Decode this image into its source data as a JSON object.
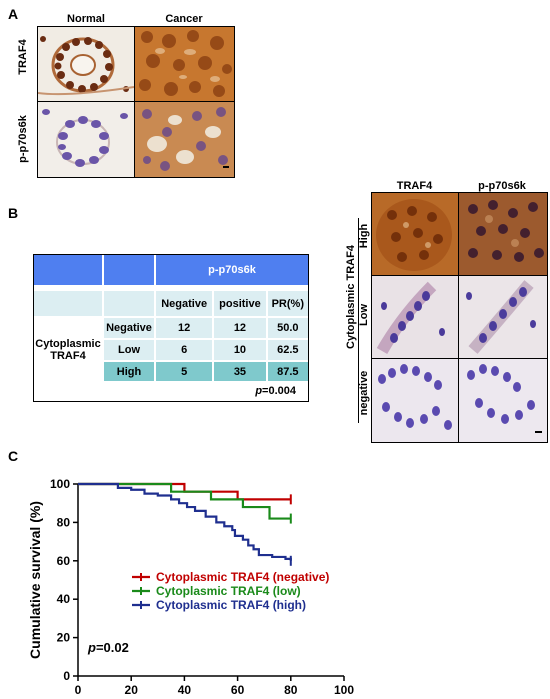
{
  "panelA": {
    "letter": "A",
    "col_labels": [
      "Normal",
      "Cancer"
    ],
    "row_labels": [
      "TRAF4",
      "p-p70s6k"
    ]
  },
  "panelB": {
    "letter": "B",
    "table": {
      "header": "p-p70s6k",
      "columns": [
        "Negative",
        "positive",
        "PR(%)"
      ],
      "row_group": "Cytoplasmic\nTRAF4",
      "rows": [
        {
          "label": "Negative",
          "values": [
            "12",
            "12",
            "50.0"
          ]
        },
        {
          "label": "Low",
          "values": [
            "6",
            "10",
            "62.5"
          ]
        },
        {
          "label": "High",
          "values": [
            "5",
            "35",
            "87.5"
          ]
        }
      ],
      "p_prefix": "p",
      "p_value": "=0.004"
    },
    "micro": {
      "col_labels": [
        "TRAF4",
        "p-p70s6k"
      ],
      "row_labels": [
        "High",
        "Low",
        "negative"
      ],
      "group_label": "Cytoplasmic TRAF4"
    }
  },
  "panelC": {
    "letter": "C",
    "chart_data": {
      "type": "line",
      "xlabel": "months",
      "ylabel": "Cumulative survival (%)",
      "xlim": [
        0,
        100
      ],
      "ylim": [
        0,
        100
      ],
      "xticks": [
        "0",
        "20",
        "40",
        "60",
        "80",
        "100"
      ],
      "yticks": [
        "0",
        "20",
        "40",
        "60",
        "80",
        "100"
      ],
      "legend_position": "center",
      "series": [
        {
          "name": "Cytoplasmic TRAF4 (negative)",
          "color": "#c00000",
          "x": [
            0,
            29,
            40,
            60,
            80
          ],
          "y": [
            100,
            100,
            96,
            92,
            92
          ]
        },
        {
          "name": "Cytoplasmic TRAF4 (low)",
          "color": "#1a8a1a",
          "x": [
            0,
            28,
            35,
            50,
            62,
            72,
            80
          ],
          "y": [
            100,
            100,
            96,
            92,
            88,
            82,
            82
          ]
        },
        {
          "name": "Cytoplasmic TRAF4 (high)",
          "color": "#1f2f8f",
          "x": [
            0,
            15,
            20,
            25,
            30,
            35,
            38,
            41,
            44,
            48,
            52,
            55,
            58,
            59,
            62,
            64,
            66,
            68,
            73,
            78,
            80
          ],
          "y": [
            100,
            98,
            97,
            95,
            94,
            92,
            90,
            88,
            86,
            83,
            80,
            78,
            76,
            73,
            71,
            68,
            66,
            63,
            62,
            61,
            60
          ]
        }
      ],
      "p_prefix": "p",
      "p_value": "=0.02"
    }
  }
}
